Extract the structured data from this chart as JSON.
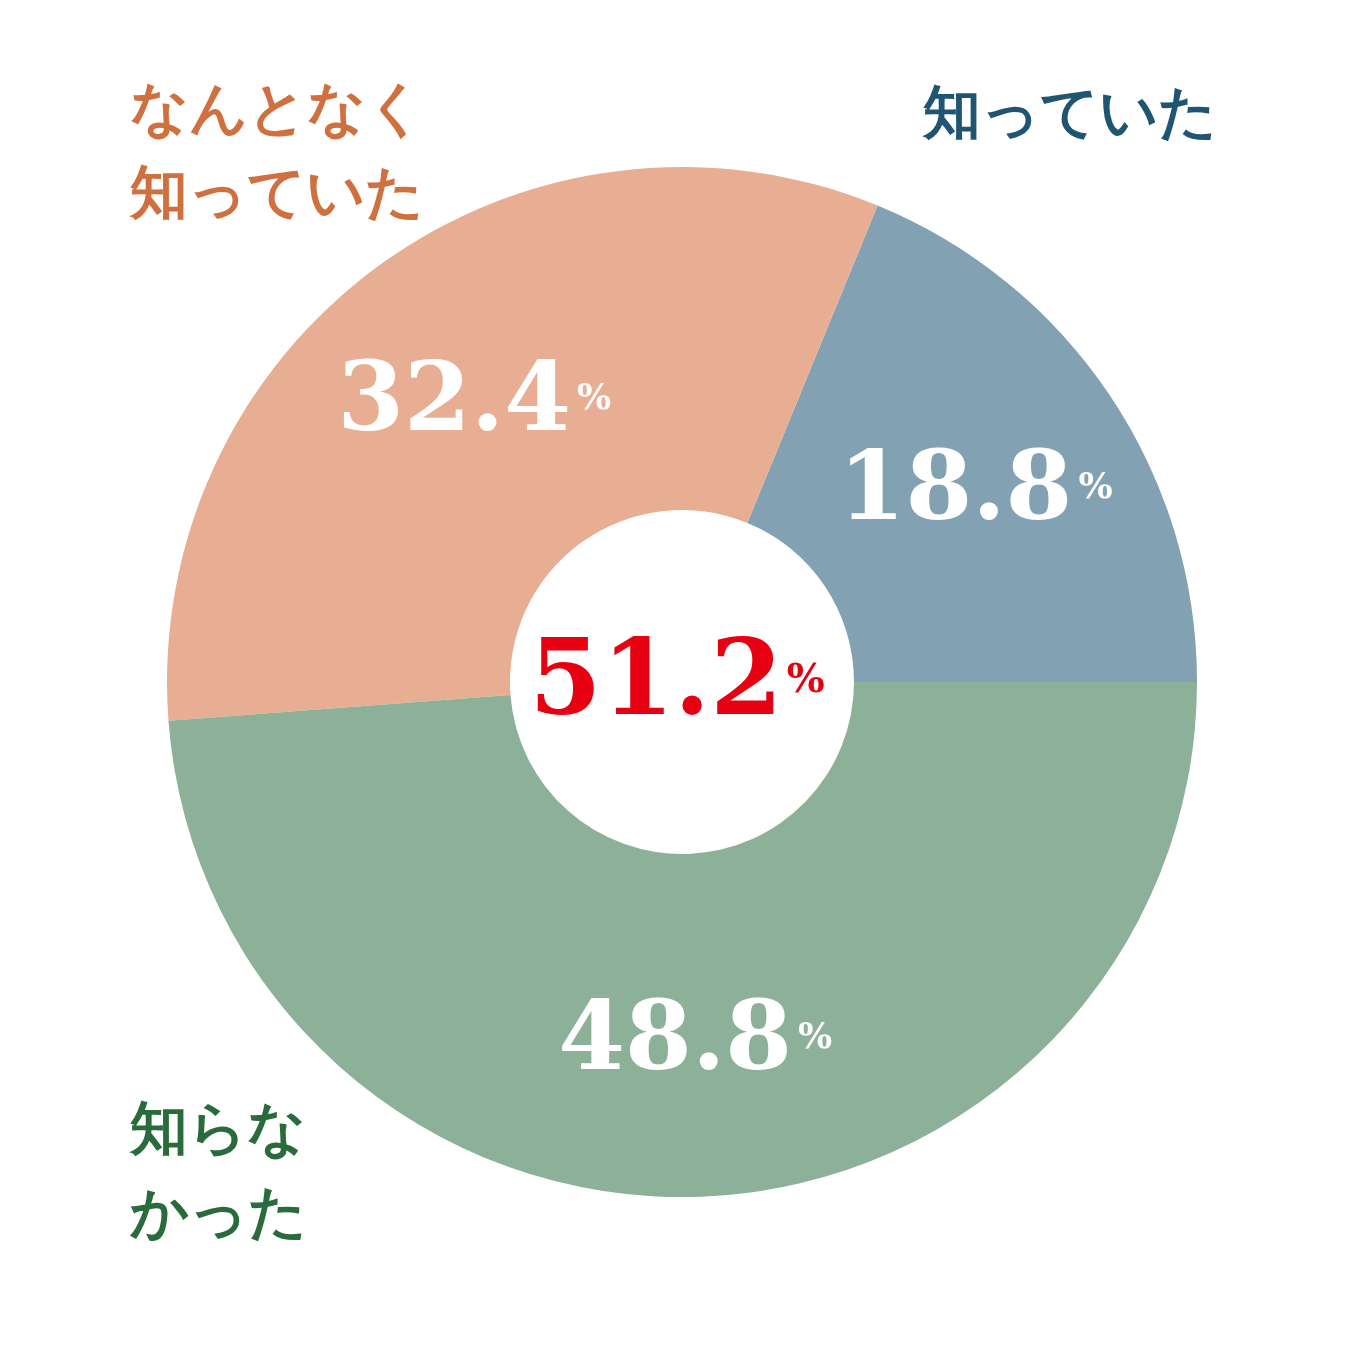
{
  "chart_data": {
    "type": "donut",
    "categories": [
      "知っていた",
      "なんとなく知っていた",
      "知らなかった"
    ],
    "values": [
      18.8,
      32.4,
      48.8
    ],
    "colors": [
      "#82a1b3",
      "#e8ae93",
      "#8db198"
    ],
    "value_labels": [
      "18.8%",
      "32.4%",
      "48.8%"
    ],
    "annotations": [
      "51.2%"
    ],
    "legend": false
  }
}
